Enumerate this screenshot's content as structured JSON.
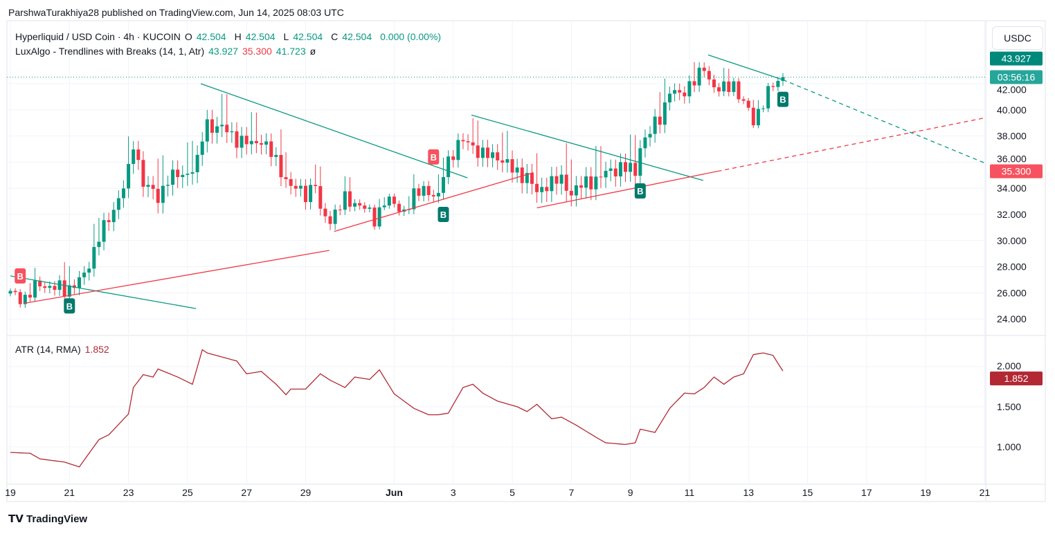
{
  "header": {
    "published": "ParshwaTurakhiya28 published on TradingView.com, Jun 14, 2025 08:03 UTC"
  },
  "legend": {
    "symbol": "Hyperliquid / USD Coin · 4h · KUCOIN",
    "o_label": "O",
    "o": "42.504",
    "h_label": "H",
    "h": "42.504",
    "l_label": "L",
    "l": "42.504",
    "c_label": "C",
    "c": "42.504",
    "change": "0.000 (0.00%)",
    "indicator": "LuxAlgo - Trendlines with Breaks (14, 1, Atr)",
    "ind_v1": "43.927",
    "ind_v2": "35.300",
    "ind_v3": "41.723",
    "ind_icon": "ø",
    "atr": "ATR (14, RMA)",
    "atr_value": "1.852"
  },
  "currency_button": "USDC",
  "price_labels": {
    "upper": "43.927",
    "countdown": "03:56:16",
    "lower": "35.300",
    "atr": "1.852"
  },
  "footer": {
    "logo": "TradingView"
  },
  "colors": {
    "up": "#089981",
    "down": "#f23645",
    "atr": "#b22833",
    "upper_line": "#089981",
    "lower_line": "#f23645"
  },
  "chart_data": {
    "type": "candlestick",
    "title": "Hyperliquid / USD Coin · 4h · KUCOIN",
    "candle_count": 158,
    "close_keypoints": [
      [
        0,
        25.9
      ],
      [
        3,
        25.6
      ],
      [
        6,
        26.7
      ],
      [
        11,
        26.2
      ],
      [
        15,
        27.2
      ],
      [
        18,
        30.4
      ],
      [
        20,
        31.5
      ],
      [
        24,
        35.2
      ],
      [
        25,
        37.3
      ],
      [
        27,
        34.6
      ],
      [
        30,
        33.1
      ],
      [
        32,
        34.9
      ],
      [
        35,
        34.9
      ],
      [
        38,
        36
      ],
      [
        39,
        37.8
      ],
      [
        40,
        38.9
      ],
      [
        43,
        38.6
      ],
      [
        46,
        37.8
      ],
      [
        49,
        37.3
      ],
      [
        51,
        37.8
      ],
      [
        54,
        36
      ],
      [
        57,
        34.1
      ],
      [
        60,
        33.6
      ],
      [
        62,
        34.4
      ],
      [
        63,
        32
      ],
      [
        65,
        31.7
      ],
      [
        68,
        33.1
      ],
      [
        71,
        32.8
      ],
      [
        74,
        31.6
      ],
      [
        76,
        33.1
      ],
      [
        80,
        32.3
      ],
      [
        82,
        33.3
      ],
      [
        84,
        34.1
      ],
      [
        87,
        33.1
      ],
      [
        88,
        35.2
      ],
      [
        89,
        36.2
      ],
      [
        91,
        37.3
      ],
      [
        93,
        37.6
      ],
      [
        96,
        36.5
      ],
      [
        99,
        36.5
      ],
      [
        102,
        35.4
      ],
      [
        105,
        34.9
      ],
      [
        107,
        33.6
      ],
      [
        109,
        34.4
      ],
      [
        112,
        34.6
      ],
      [
        114,
        33.7
      ],
      [
        117,
        34.4
      ],
      [
        120,
        34.9
      ],
      [
        124,
        35.7
      ],
      [
        127,
        35.2
      ],
      [
        128,
        37.3
      ],
      [
        130,
        38.3
      ],
      [
        132,
        39.4
      ],
      [
        134,
        41.5
      ],
      [
        136,
        41
      ],
      [
        138,
        42
      ],
      [
        140,
        42.6
      ],
      [
        141,
        43.1
      ],
      [
        143,
        41.8
      ],
      [
        145,
        41.5
      ],
      [
        147,
        42
      ],
      [
        149,
        40.5
      ],
      [
        151,
        39.1
      ],
      [
        153,
        40.7
      ],
      [
        155,
        41.8
      ],
      [
        157,
        42.5
      ]
    ],
    "y_axis": {
      "min": 23,
      "max": 45.5,
      "ticks": [
        "24.000",
        "26.000",
        "28.000",
        "30.000",
        "32.000",
        "34.000",
        "36.000",
        "38.000",
        "40.000",
        "42.000"
      ]
    },
    "x_ticks": [
      {
        "day": 0,
        "label": "19"
      },
      {
        "day": 2,
        "label": "21"
      },
      {
        "day": 4,
        "label": "23"
      },
      {
        "day": 6,
        "label": "25"
      },
      {
        "day": 8,
        "label": "27"
      },
      {
        "day": 10,
        "label": "29"
      },
      {
        "day": 13,
        "label": "Jun"
      },
      {
        "day": 15,
        "label": "3"
      },
      {
        "day": 17,
        "label": "5"
      },
      {
        "day": 19,
        "label": "7"
      },
      {
        "day": 21,
        "label": "9"
      },
      {
        "day": 23,
        "label": "11"
      },
      {
        "day": 25,
        "label": "13"
      },
      {
        "day": 27,
        "label": "15"
      },
      {
        "day": 29,
        "label": "17"
      },
      {
        "day": 31,
        "label": "19"
      },
      {
        "day": 33,
        "label": "21"
      }
    ],
    "last_price": 42.504,
    "trendlines": [
      {
        "color": "up",
        "from": [
          0,
          27.3
        ],
        "to": [
          37.7,
          24.8
        ],
        "dashed": false
      },
      {
        "color": "up",
        "from": [
          38.7,
          42
        ],
        "to": [
          92.9,
          34.8
        ],
        "dashed": false
      },
      {
        "color": "up",
        "from": [
          93.7,
          39.6
        ],
        "to": [
          140.8,
          34.6
        ],
        "dashed": false
      },
      {
        "color": "up",
        "from": [
          141.8,
          44.2
        ],
        "to": [
          157,
          42.3
        ],
        "dashed": false
      },
      {
        "color": "up",
        "from": [
          157,
          42.3
        ],
        "to": [
          198.6,
          35.9
        ],
        "dashed": true
      },
      {
        "color": "down",
        "from": [
          2.8,
          25.2
        ],
        "to": [
          64.8,
          29.25
        ],
        "dashed": false
      },
      {
        "color": "down",
        "from": [
          65.8,
          30.7
        ],
        "to": [
          106.3,
          35.2
        ],
        "dashed": false
      },
      {
        "color": "down",
        "from": [
          107,
          32.5
        ],
        "to": [
          143.7,
          35.3
        ],
        "dashed": false
      },
      {
        "color": "down",
        "from": [
          143.7,
          35.3
        ],
        "to": [
          198.6,
          39.4
        ],
        "dashed": true
      }
    ],
    "break_labels": [
      {
        "i": 2,
        "price": 27.3,
        "type": "down",
        "text": "B"
      },
      {
        "i": 12,
        "price": 25.0,
        "type": "up",
        "text": "B"
      },
      {
        "i": 86,
        "price": 36.4,
        "type": "down",
        "text": "B"
      },
      {
        "i": 88,
        "price": 32.0,
        "type": "up",
        "text": "B"
      },
      {
        "i": 128,
        "price": 33.8,
        "type": "up",
        "text": "B"
      },
      {
        "i": 157,
        "price": 40.8,
        "type": "up",
        "text": "B"
      }
    ],
    "atr": {
      "name": "ATR (14, RMA)",
      "y_ticks": [
        "1.000",
        "1.500",
        "2.000"
      ],
      "keypoints": [
        [
          0,
          0.93
        ],
        [
          4,
          0.92
        ],
        [
          6,
          0.85
        ],
        [
          11,
          0.81
        ],
        [
          14,
          0.75
        ],
        [
          16,
          0.92
        ],
        [
          18,
          1.09
        ],
        [
          20,
          1.15
        ],
        [
          24,
          1.41
        ],
        [
          25,
          1.74
        ],
        [
          27,
          1.9
        ],
        [
          29,
          1.87
        ],
        [
          30,
          1.97
        ],
        [
          34,
          1.87
        ],
        [
          37,
          1.78
        ],
        [
          39,
          2.21
        ],
        [
          40,
          2.17
        ],
        [
          46,
          2.07
        ],
        [
          48,
          1.91
        ],
        [
          51,
          1.94
        ],
        [
          54,
          1.78
        ],
        [
          56,
          1.65
        ],
        [
          57,
          1.72
        ],
        [
          60,
          1.72
        ],
        [
          63,
          1.91
        ],
        [
          65,
          1.83
        ],
        [
          68,
          1.74
        ],
        [
          70,
          1.87
        ],
        [
          73,
          1.84
        ],
        [
          75,
          1.96
        ],
        [
          78,
          1.66
        ],
        [
          82,
          1.48
        ],
        [
          85,
          1.4
        ],
        [
          87,
          1.4
        ],
        [
          89,
          1.42
        ],
        [
          92,
          1.74
        ],
        [
          94,
          1.78
        ],
        [
          96,
          1.67
        ],
        [
          99,
          1.57
        ],
        [
          103,
          1.5
        ],
        [
          105,
          1.44
        ],
        [
          107,
          1.53
        ],
        [
          110,
          1.35
        ],
        [
          112,
          1.37
        ],
        [
          115,
          1.27
        ],
        [
          119,
          1.12
        ],
        [
          121,
          1.05
        ],
        [
          125,
          1.03
        ],
        [
          127,
          1.05
        ],
        [
          128,
          1.22
        ],
        [
          131,
          1.18
        ],
        [
          134,
          1.48
        ],
        [
          137,
          1.67
        ],
        [
          139,
          1.66
        ],
        [
          141,
          1.74
        ],
        [
          143,
          1.87
        ],
        [
          145,
          1.78
        ],
        [
          147,
          1.87
        ],
        [
          149,
          1.91
        ],
        [
          151,
          2.15
        ],
        [
          153,
          2.17
        ],
        [
          155,
          2.14
        ],
        [
          156,
          2.04
        ],
        [
          158,
          1.852
        ]
      ]
    }
  }
}
